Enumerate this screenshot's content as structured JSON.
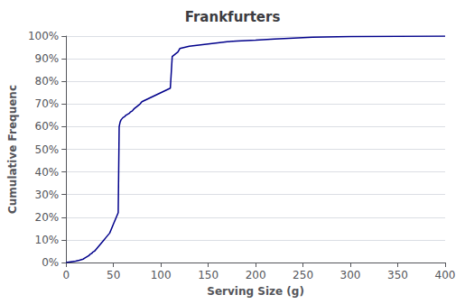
{
  "chart_data": {
    "type": "line",
    "title": "Frankfurters",
    "xlabel": "Serving Size (g)",
    "ylabel": "Cumulative Frequenc",
    "x": [
      0,
      5,
      10,
      14,
      18,
      20,
      22,
      24,
      25,
      27,
      28,
      30,
      32,
      34,
      36,
      38,
      40,
      42,
      44,
      46,
      48,
      50,
      51,
      52,
      53,
      54,
      55,
      56,
      57,
      58,
      59,
      60,
      62,
      63,
      65,
      67,
      68,
      70,
      72,
      75,
      78,
      80,
      85,
      90,
      95,
      100,
      105,
      110,
      112,
      115,
      118,
      120,
      125,
      130,
      140,
      150,
      160,
      170,
      180,
      200,
      220,
      240,
      260,
      300,
      350,
      400
    ],
    "values": [
      0.0,
      0.003,
      0.006,
      0.01,
      0.015,
      0.02,
      0.025,
      0.03,
      0.035,
      0.04,
      0.045,
      0.05,
      0.06,
      0.07,
      0.08,
      0.09,
      0.1,
      0.11,
      0.12,
      0.13,
      0.15,
      0.17,
      0.18,
      0.19,
      0.2,
      0.21,
      0.22,
      0.6,
      0.62,
      0.63,
      0.635,
      0.64,
      0.645,
      0.65,
      0.655,
      0.66,
      0.665,
      0.67,
      0.68,
      0.69,
      0.7,
      0.71,
      0.72,
      0.73,
      0.74,
      0.75,
      0.76,
      0.77,
      0.91,
      0.92,
      0.93,
      0.945,
      0.95,
      0.955,
      0.96,
      0.965,
      0.97,
      0.975,
      0.978,
      0.982,
      0.987,
      0.991,
      0.995,
      0.998,
      0.999,
      1.0
    ],
    "color": "#00008B",
    "xlim": [
      0,
      400
    ],
    "xticks": [
      0,
      50,
      100,
      150,
      200,
      250,
      300,
      350,
      400
    ],
    "ylim": [
      0,
      1.0
    ],
    "yticks": [
      {
        "value": 0.0,
        "label": "0%"
      },
      {
        "value": 0.1,
        "label": "10%"
      },
      {
        "value": 0.2,
        "label": "20%"
      },
      {
        "value": 0.3,
        "label": "30%"
      },
      {
        "value": 0.4,
        "label": "40%"
      },
      {
        "value": 0.5,
        "label": "50%"
      },
      {
        "value": 0.6,
        "label": "60%"
      },
      {
        "value": 0.7,
        "label": "70%"
      },
      {
        "value": 0.8,
        "label": "80%"
      },
      {
        "value": 0.9,
        "label": "90%"
      },
      {
        "value": 1.0,
        "label": "100%"
      }
    ],
    "grid": "y"
  }
}
